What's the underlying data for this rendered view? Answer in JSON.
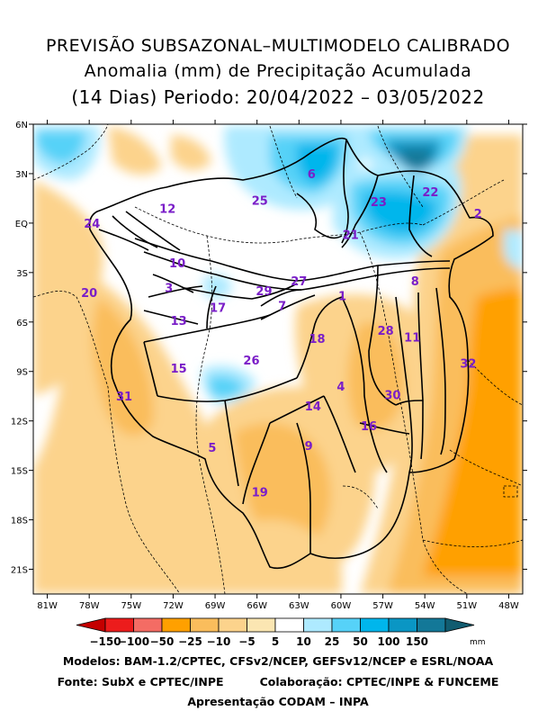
{
  "title": {
    "line1": "PREVISÃO SUBSAZONAL–MULTIMODELO CALIBRADO",
    "line2": "Anomalia (mm) de Precipitação Acumulada",
    "line3": "(14 Dias) Periodo: 20/04/2022 – 03/05/2022"
  },
  "map": {
    "lon_range": [
      -82,
      -47
    ],
    "lat_range": [
      -22.5,
      6
    ],
    "lat_ticks": [
      "6N",
      "3N",
      "EQ",
      "3S",
      "6S",
      "9S",
      "12S",
      "15S",
      "18S",
      "21S"
    ],
    "lon_ticks": [
      "81W",
      "78W",
      "75W",
      "72W",
      "69W",
      "66W",
      "63W",
      "60W",
      "57W",
      "54W",
      "51W",
      "48W"
    ],
    "basins": [
      {
        "id": "1",
        "lon": -59.9,
        "lat": -4.4
      },
      {
        "id": "2",
        "lon": -50.2,
        "lat": 0.6
      },
      {
        "id": "3",
        "lon": -72.3,
        "lat": -3.9
      },
      {
        "id": "4",
        "lon": -60.0,
        "lat": -9.9
      },
      {
        "id": "5",
        "lon": -69.2,
        "lat": -13.6
      },
      {
        "id": "6",
        "lon": -62.1,
        "lat": 3.0
      },
      {
        "id": "7",
        "lon": -64.2,
        "lat": -5.0
      },
      {
        "id": "8",
        "lon": -54.7,
        "lat": -3.5
      },
      {
        "id": "9",
        "lon": -62.3,
        "lat": -13.5
      },
      {
        "id": "10",
        "lon": -71.7,
        "lat": -2.4
      },
      {
        "id": "11",
        "lon": -54.9,
        "lat": -6.9
      },
      {
        "id": "12",
        "lon": -72.4,
        "lat": 0.9
      },
      {
        "id": "13",
        "lon": -71.6,
        "lat": -5.9
      },
      {
        "id": "14",
        "lon": -62.0,
        "lat": -11.1
      },
      {
        "id": "15",
        "lon": -71.6,
        "lat": -8.8
      },
      {
        "id": "16",
        "lon": -58.0,
        "lat": -12.3
      },
      {
        "id": "17",
        "lon": -68.8,
        "lat": -5.1
      },
      {
        "id": "18",
        "lon": -61.7,
        "lat": -7.0
      },
      {
        "id": "19",
        "lon": -65.8,
        "lat": -16.3
      },
      {
        "id": "20",
        "lon": -78.0,
        "lat": -4.2
      },
      {
        "id": "21",
        "lon": -59.3,
        "lat": -0.7
      },
      {
        "id": "22",
        "lon": -53.6,
        "lat": 1.9
      },
      {
        "id": "23",
        "lon": -57.3,
        "lat": 1.3
      },
      {
        "id": "24",
        "lon": -77.8,
        "lat": 0.0
      },
      {
        "id": "25",
        "lon": -65.8,
        "lat": 1.4
      },
      {
        "id": "26",
        "lon": -66.4,
        "lat": -8.3
      },
      {
        "id": "27",
        "lon": -63.0,
        "lat": -3.5
      },
      {
        "id": "28",
        "lon": -56.8,
        "lat": -6.5
      },
      {
        "id": "29",
        "lon": -65.5,
        "lat": -4.1
      },
      {
        "id": "30",
        "lon": -56.3,
        "lat": -10.4
      },
      {
        "id": "31",
        "lon": -75.5,
        "lat": -10.5
      },
      {
        "id": "32",
        "lon": -50.9,
        "lat": -8.5
      }
    ]
  },
  "legend": {
    "labels": [
      "-150",
      "-100",
      "-50",
      "-25",
      "-10",
      "-5",
      "5",
      "10",
      "25",
      "50",
      "100",
      "150"
    ],
    "unit": "mm",
    "colors": [
      "#c40000",
      "#ec1c1c",
      "#f46c64",
      "#ffa000",
      "#fabd5c",
      "#fcd38c",
      "#fbe6b2",
      "#ffffff",
      "#aeeaff",
      "#56d2f8",
      "#00b6ec",
      "#0a96c4",
      "#137898",
      "#115c70"
    ]
  },
  "footer": {
    "models": "Modelos: BAM-1.2/CPTEC, CFSv2/NCEP, GEFSv12/NCEP e ESRL/NOAA",
    "source": "Fonte: SubX e CPTEC/INPE",
    "collab": "Colaboração: CPTEC/INPE & FUNCEME",
    "presentation": "Apresentação CODAM – INPA"
  }
}
